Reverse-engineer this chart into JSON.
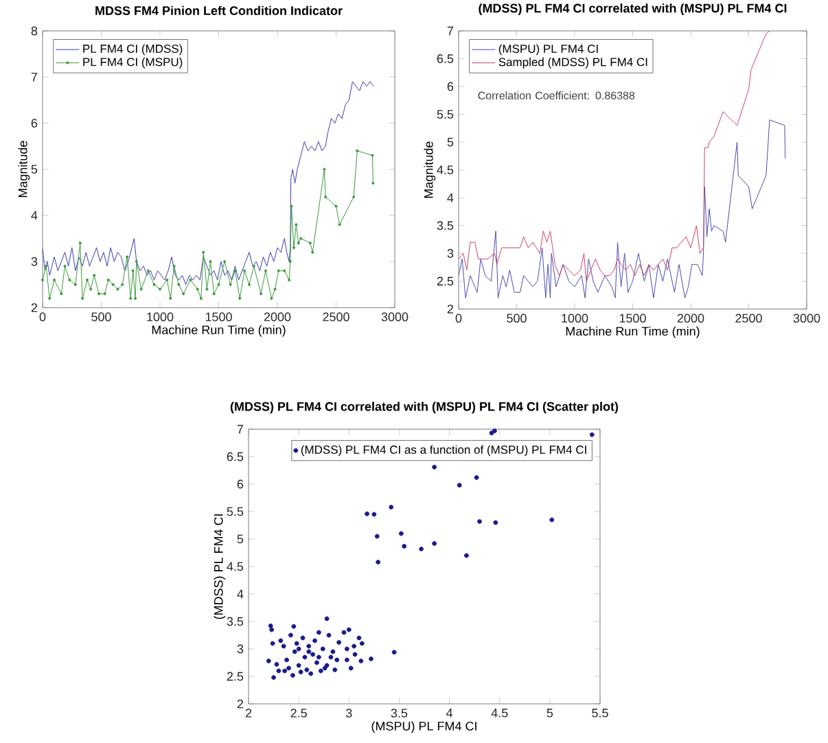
{
  "chart_data": [
    {
      "type": "line",
      "title": "MDSS FM4 Pinion Left Condition Indicator",
      "xlabel": "Machine Run Time (min)",
      "ylabel": "Magnitude",
      "xlim": [
        0,
        3000
      ],
      "ylim": [
        2,
        8
      ],
      "xticks": [
        0,
        500,
        1000,
        1500,
        2000,
        2500,
        3000
      ],
      "yticks": [
        2,
        3,
        4,
        5,
        6,
        7,
        8
      ],
      "legend": "top left",
      "series": [
        {
          "name": "PL FM4 CI (MDSS)",
          "color": "#3a3ab4",
          "x": [
            0,
            20,
            40,
            60,
            80,
            100,
            130,
            160,
            190,
            220,
            250,
            280,
            310,
            340,
            370,
            400,
            430,
            460,
            490,
            520,
            550,
            580,
            610,
            640,
            670,
            700,
            730,
            760,
            780,
            800,
            830,
            860,
            890,
            920,
            950,
            980,
            1010,
            1040,
            1070,
            1100,
            1130,
            1160,
            1190,
            1220,
            1250,
            1280,
            1310,
            1340,
            1370,
            1400,
            1430,
            1460,
            1490,
            1520,
            1550,
            1580,
            1610,
            1640,
            1670,
            1700,
            1730,
            1760,
            1790,
            1820,
            1850,
            1880,
            1910,
            1940,
            1970,
            2000,
            2030,
            2060,
            2080,
            2100,
            2110,
            2115,
            2130,
            2150,
            2170,
            2200,
            2230,
            2260,
            2290,
            2320,
            2350,
            2380,
            2410,
            2430,
            2460,
            2490,
            2520,
            2550,
            2580,
            2610,
            2640,
            2670,
            2700,
            2730,
            2760,
            2790,
            2820
          ],
          "values": [
            3.3,
            2.8,
            3.0,
            2.7,
            2.9,
            3.1,
            2.8,
            3.0,
            3.2,
            2.9,
            3.3,
            2.8,
            3.1,
            2.9,
            3.2,
            2.9,
            3.1,
            3.3,
            3.0,
            3.2,
            2.9,
            3.3,
            3.0,
            3.2,
            3.1,
            2.8,
            3.0,
            3.3,
            3.5,
            3.0,
            2.8,
            2.9,
            2.7,
            2.8,
            2.6,
            2.8,
            2.7,
            2.6,
            2.8,
            3.1,
            2.7,
            2.6,
            2.7,
            2.5,
            2.7,
            2.6,
            2.7,
            2.6,
            3.1,
            2.9,
            2.7,
            2.8,
            2.6,
            3.0,
            2.7,
            2.8,
            2.6,
            2.9,
            2.6,
            2.8,
            3.0,
            3.2,
            2.9,
            3.0,
            2.8,
            3.1,
            2.9,
            3.2,
            3.0,
            3.3,
            3.2,
            3.5,
            3.2,
            3.0,
            3.3,
            4.8,
            5.0,
            4.7,
            5.0,
            5.3,
            5.6,
            5.4,
            5.5,
            5.4,
            5.6,
            5.4,
            5.5,
            5.8,
            6.1,
            6.0,
            6.2,
            6.1,
            6.4,
            6.5,
            6.9,
            6.8,
            6.7,
            6.9,
            6.8,
            6.9,
            6.8
          ]
        },
        {
          "name": "PL FM4 CI (MSPU)",
          "color": "#3a9a3a",
          "marker": "circle",
          "x": [
            0,
            30,
            60,
            100,
            160,
            190,
            230,
            280,
            320,
            340,
            380,
            410,
            440,
            480,
            530,
            560,
            600,
            640,
            680,
            720,
            750,
            770,
            790,
            800,
            840,
            900,
            950,
            1000,
            1060,
            1090,
            1120,
            1160,
            1200,
            1260,
            1320,
            1350,
            1370,
            1400,
            1430,
            1460,
            1500,
            1550,
            1600,
            1640,
            1680,
            1720,
            1760,
            1800,
            1860,
            1900,
            1950,
            1980,
            2010,
            2060,
            2100,
            2110,
            2120,
            2140,
            2160,
            2180,
            2200,
            2280,
            2300,
            2400,
            2410,
            2500,
            2530,
            2650,
            2680,
            2810,
            2815
          ],
          "values": [
            2.6,
            2.9,
            2.2,
            2.6,
            2.3,
            2.9,
            2.6,
            2.5,
            3.4,
            2.2,
            2.6,
            2.4,
            2.7,
            2.3,
            2.3,
            2.6,
            2.5,
            2.4,
            2.5,
            3.1,
            2.2,
            2.8,
            2.2,
            3.0,
            2.4,
            2.8,
            2.5,
            2.4,
            2.6,
            2.2,
            2.9,
            2.5,
            2.3,
            2.6,
            2.4,
            2.2,
            3.2,
            2.4,
            3.0,
            2.3,
            2.5,
            3.0,
            2.5,
            2.8,
            2.2,
            2.8,
            2.5,
            2.9,
            2.3,
            2.8,
            2.2,
            2.4,
            2.8,
            2.8,
            2.6,
            3.0,
            4.2,
            3.3,
            3.8,
            3.4,
            3.5,
            3.4,
            3.2,
            5.0,
            4.4,
            4.2,
            3.8,
            4.4,
            5.4,
            5.3,
            4.7
          ]
        }
      ]
    },
    {
      "type": "line",
      "title": "(MDSS) PL FM4 CI correlated with (MSPU) PL FM4 CI",
      "xlabel": "Machine Run Time (min)",
      "ylabel": "Magnitude",
      "xlim": [
        0,
        3000
      ],
      "ylim": [
        2,
        7
      ],
      "xticks": [
        0,
        500,
        1000,
        1500,
        2000,
        2500,
        3000
      ],
      "yticks": [
        2,
        2.5,
        3,
        3.5,
        4,
        4.5,
        5,
        5.5,
        6,
        6.5,
        7
      ],
      "legend": "top left",
      "annotations": [
        "Correlation Coefficient: 0.86388"
      ],
      "series": [
        {
          "name": "(MSPU) PL FM4 CI",
          "color": "#4a4ab4",
          "x": [
            0,
            30,
            60,
            100,
            160,
            190,
            230,
            280,
            320,
            340,
            380,
            410,
            440,
            480,
            530,
            560,
            600,
            640,
            680,
            720,
            750,
            770,
            790,
            800,
            840,
            900,
            950,
            1000,
            1060,
            1090,
            1120,
            1160,
            1200,
            1260,
            1320,
            1350,
            1370,
            1400,
            1430,
            1460,
            1500,
            1550,
            1600,
            1640,
            1680,
            1720,
            1760,
            1800,
            1860,
            1900,
            1950,
            1980,
            2010,
            2060,
            2100,
            2110,
            2120,
            2140,
            2160,
            2180,
            2200,
            2280,
            2300,
            2400,
            2410,
            2500,
            2530,
            2650,
            2680,
            2810,
            2815
          ],
          "values": [
            2.6,
            2.9,
            2.2,
            2.6,
            2.3,
            2.9,
            2.6,
            2.5,
            3.4,
            2.2,
            2.6,
            2.4,
            2.7,
            2.3,
            2.3,
            2.6,
            2.5,
            2.4,
            2.5,
            3.1,
            2.2,
            2.8,
            2.2,
            3.0,
            2.4,
            2.8,
            2.5,
            2.4,
            2.6,
            2.2,
            2.9,
            2.5,
            2.3,
            2.6,
            2.4,
            2.2,
            3.2,
            2.4,
            3.0,
            2.3,
            2.5,
            3.0,
            2.5,
            2.8,
            2.2,
            2.8,
            2.5,
            2.9,
            2.3,
            2.8,
            2.2,
            2.4,
            2.8,
            2.8,
            2.6,
            3.0,
            4.2,
            3.3,
            3.8,
            3.4,
            3.5,
            3.4,
            3.2,
            5.0,
            4.4,
            4.2,
            3.8,
            4.4,
            5.4,
            5.3,
            4.7
          ]
        },
        {
          "name": "Sampled (MDSS) PL FM4 CI",
          "color": "#d04060",
          "x": [
            0,
            40,
            70,
            100,
            140,
            170,
            200,
            250,
            310,
            330,
            370,
            420,
            470,
            530,
            560,
            600,
            640,
            670,
            700,
            730,
            760,
            790,
            830,
            870,
            900,
            950,
            1000,
            1050,
            1080,
            1100,
            1140,
            1180,
            1220,
            1260,
            1300,
            1340,
            1370,
            1400,
            1440,
            1480,
            1520,
            1560,
            1600,
            1640,
            1680,
            1720,
            1760,
            1800,
            1840,
            1880,
            1920,
            1960,
            2000,
            2050,
            2080,
            2110,
            2120,
            2150,
            2160,
            2200,
            2280,
            2300,
            2400,
            2500,
            2520,
            2650,
            2680
          ],
          "values": [
            2.9,
            3.0,
            2.7,
            3.2,
            3.2,
            2.9,
            2.9,
            2.9,
            3.0,
            2.8,
            3.1,
            3.1,
            3.1,
            3.1,
            3.3,
            3.1,
            3.2,
            3.1,
            3.0,
            3.4,
            3.2,
            3.4,
            2.8,
            2.6,
            2.8,
            2.7,
            2.6,
            2.7,
            3.0,
            2.5,
            2.7,
            2.9,
            2.7,
            2.6,
            2.6,
            2.7,
            2.9,
            2.8,
            2.7,
            2.8,
            2.6,
            2.8,
            2.6,
            2.8,
            2.7,
            2.8,
            2.9,
            2.7,
            3.1,
            3.1,
            3.2,
            3.3,
            3.1,
            3.5,
            3.0,
            3.1,
            4.9,
            4.9,
            5.0,
            5.1,
            5.55,
            5.5,
            5.3,
            5.95,
            6.3,
            6.95,
            7.0
          ]
        }
      ]
    },
    {
      "type": "scatter",
      "title": "(MDSS) PL FM4 CI correlated with (MSPU) PL FM4 CI (Scatter plot)",
      "xlabel": "(MSPU) PL FM4 CI",
      "ylabel": "(MDSS) PL FM4 CI",
      "xlim": [
        2,
        5.5
      ],
      "ylim": [
        2,
        7
      ],
      "xticks": [
        2,
        2.5,
        3,
        3.5,
        4,
        4.5,
        5,
        5.5
      ],
      "yticks": [
        2,
        2.5,
        3,
        3.5,
        4,
        4.5,
        5,
        5.5,
        6,
        6.5,
        7
      ],
      "legend": "top",
      "marker": "circle",
      "series": [
        {
          "name": "(MDSS) PL FM4 CI as a function of (MSPU) PL FM4 CI",
          "color": "#1a1a8c",
          "x": [
            4.42,
            4.45,
            5.42,
            3.85,
            4.1,
            4.27,
            3.42,
            3.18,
            3.25,
            4.3,
            4.46,
            5.02,
            3.28,
            3.52,
            3.55,
            3.72,
            3.85,
            4.17,
            3.29,
            3.45,
            3.22,
            2.22,
            2.23,
            2.45,
            2.78,
            2.24,
            2.2,
            2.25,
            2.3,
            2.32,
            2.35,
            2.38,
            2.4,
            2.42,
            2.44,
            2.46,
            2.48,
            2.5,
            2.52,
            2.54,
            2.56,
            2.58,
            2.6,
            2.62,
            2.64,
            2.66,
            2.68,
            2.7,
            2.72,
            2.74,
            2.76,
            2.8,
            2.82,
            2.84,
            2.86,
            2.9,
            2.95,
            2.98,
            3.0,
            3.02,
            3.05,
            3.1,
            3.12,
            3.13,
            2.28,
            2.36,
            2.5,
            2.6,
            2.7,
            2.78,
            2.88,
            2.98,
            3.06
          ],
          "values": [
            6.93,
            6.97,
            6.9,
            6.31,
            5.98,
            6.12,
            5.58,
            5.46,
            5.45,
            5.32,
            5.3,
            5.35,
            5.05,
            5.1,
            4.87,
            4.82,
            4.92,
            4.7,
            4.58,
            2.94,
            2.82,
            3.42,
            3.35,
            3.41,
            3.55,
            3.1,
            2.78,
            2.48,
            2.6,
            3.15,
            3.05,
            2.8,
            2.65,
            3.25,
            2.52,
            2.95,
            3.1,
            2.7,
            2.58,
            3.2,
            2.85,
            2.62,
            3.05,
            2.55,
            2.9,
            3.15,
            2.75,
            3.3,
            2.6,
            3.0,
            2.65,
            3.25,
            2.85,
            2.95,
            2.62,
            3.12,
            3.3,
            2.8,
            3.35,
            2.65,
            3.05,
            3.2,
            2.78,
            3.1,
            2.72,
            2.6,
            3.0,
            2.95,
            2.85,
            2.7,
            2.8,
            3.0,
            2.9
          ]
        }
      ]
    }
  ]
}
